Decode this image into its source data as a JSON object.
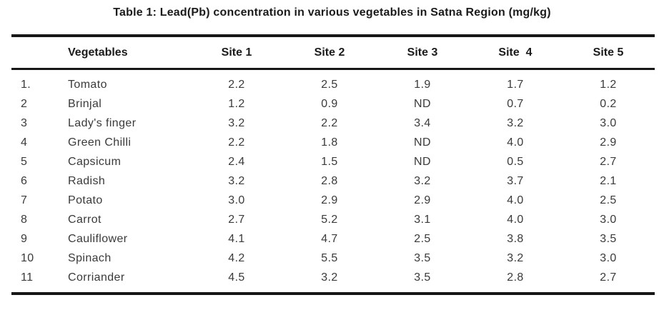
{
  "title": "Table 1: Lead(Pb) concentration in various vegetables in Satna Region (mg/kg)",
  "table": {
    "headers": {
      "num": "",
      "vegetable": "Vegetables",
      "sites": [
        "Site 1",
        "Site 2",
        "Site 3",
        "Site  4",
        "Site 5"
      ]
    },
    "rows": [
      {
        "num": "1.",
        "vegetable": "Tomato",
        "values": [
          "2.2",
          "2.5",
          "1.9",
          "1.7",
          "1.2"
        ]
      },
      {
        "num": "2",
        "vegetable": "Brinjal",
        "values": [
          "1.2",
          "0.9",
          "ND",
          "0.7",
          "0.2"
        ]
      },
      {
        "num": "3",
        "vegetable": "Lady's finger",
        "values": [
          "3.2",
          "2.2",
          "3.4",
          "3.2",
          "3.0"
        ]
      },
      {
        "num": "4",
        "vegetable": "Green Chilli",
        "values": [
          "2.2",
          "1.8",
          "ND",
          "4.0",
          "2.9"
        ]
      },
      {
        "num": "5",
        "vegetable": "Capsicum",
        "values": [
          "2.4",
          "1.5",
          "ND",
          "0.5",
          "2.7"
        ]
      },
      {
        "num": "6",
        "vegetable": "Radish",
        "values": [
          "3.2",
          "2.8",
          "3.2",
          "3.7",
          "2.1"
        ]
      },
      {
        "num": "7",
        "vegetable": "Potato",
        "values": [
          "3.0",
          "2.9",
          "2.9",
          "4.0",
          "2.5"
        ]
      },
      {
        "num": "8",
        "vegetable": "Carrot",
        "values": [
          "2.7",
          "5.2",
          "3.1",
          "4.0",
          "3.0"
        ]
      },
      {
        "num": "9",
        "vegetable": "Cauliflower",
        "values": [
          "4.1",
          "4.7",
          "2.5",
          "3.8",
          "3.5"
        ]
      },
      {
        "num": "10",
        "vegetable": "Spinach",
        "values": [
          "4.2",
          "5.5",
          "3.5",
          "3.2",
          "3.0"
        ]
      },
      {
        "num": "11",
        "vegetable": "Corriander",
        "values": [
          "4.5",
          "3.2",
          "3.5",
          "2.8",
          "2.7"
        ]
      }
    ]
  },
  "chart_data": {
    "type": "table",
    "title": "Table 1: Lead(Pb) concentration in various vegetables in Satna Region (mg/kg)",
    "columns": [
      "Vegetables",
      "Site 1",
      "Site 2",
      "Site 3",
      "Site 4",
      "Site 5"
    ],
    "categories": [
      "Tomato",
      "Brinjal",
      "Lady's finger",
      "Green Chilli",
      "Capsicum",
      "Radish",
      "Potato",
      "Carrot",
      "Cauliflower",
      "Spinach",
      "Corriander"
    ],
    "series": [
      {
        "name": "Site 1",
        "values": [
          2.2,
          1.2,
          3.2,
          2.2,
          2.4,
          3.2,
          3.0,
          2.7,
          4.1,
          4.2,
          4.5
        ]
      },
      {
        "name": "Site 2",
        "values": [
          2.5,
          0.9,
          2.2,
          1.8,
          1.5,
          2.8,
          2.9,
          5.2,
          4.7,
          5.5,
          3.2
        ]
      },
      {
        "name": "Site 3",
        "values": [
          1.9,
          null,
          3.4,
          null,
          null,
          3.2,
          2.9,
          3.1,
          2.5,
          3.5,
          3.5
        ]
      },
      {
        "name": "Site 4",
        "values": [
          1.7,
          0.7,
          3.2,
          4.0,
          0.5,
          3.7,
          4.0,
          4.0,
          3.8,
          3.2,
          2.8
        ]
      },
      {
        "name": "Site 5",
        "values": [
          1.2,
          0.2,
          3.0,
          2.9,
          2.7,
          2.1,
          2.5,
          3.0,
          3.5,
          3.0,
          2.7
        ]
      }
    ],
    "not_detected_label": "ND",
    "unit": "mg/kg"
  },
  "colors": {
    "background": "#ffffff",
    "rule": "#161616",
    "heading_text": "#1b1b1b",
    "body_text": "#3a3a3a"
  }
}
